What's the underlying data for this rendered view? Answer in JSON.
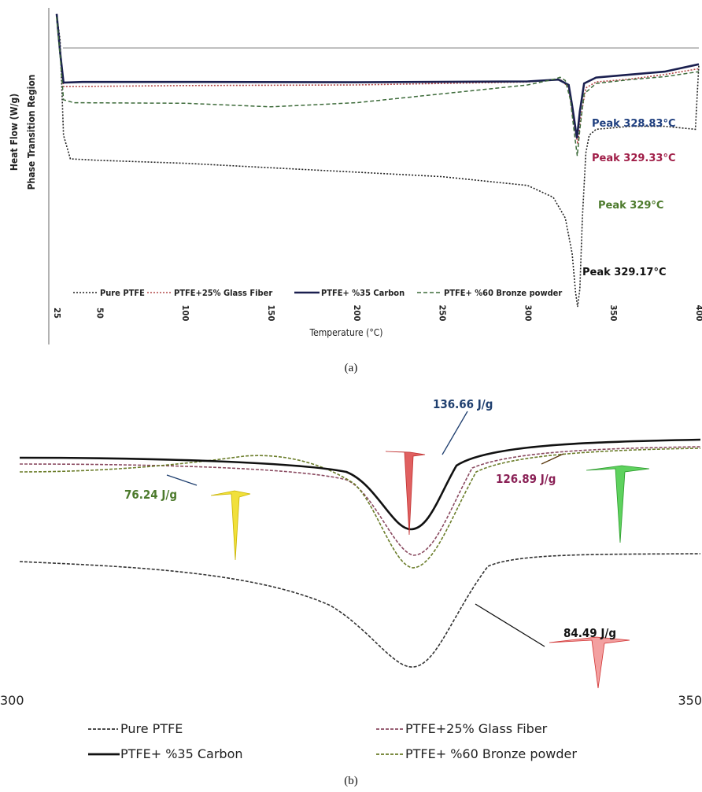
{
  "chart_data": [
    {
      "type": "line",
      "panel_label": "(a)",
      "xlabel": "Temperature (°C)",
      "ylabel": [
        "Heat Flow (W/g)",
        "Phase Transition  Region"
      ],
      "xlim": [
        25,
        400
      ],
      "x_ticks": [
        "25",
        "50",
        "100",
        "150",
        "200",
        "250",
        "300",
        "350",
        "400"
      ],
      "x_tick_values": [
        25,
        50,
        100,
        150,
        200,
        250,
        300,
        350,
        400
      ],
      "legend_position": "bottom",
      "series": [
        {
          "name": "Pure PTFE",
          "style": "dotted",
          "color": "#222222",
          "points": [
            [
              25,
              0.99
            ],
            [
              27,
              0.9
            ],
            [
              29,
              0.58
            ],
            [
              33,
              0.5
            ],
            [
              50,
              0.495
            ],
            [
              100,
              0.485
            ],
            [
              150,
              0.47
            ],
            [
              200,
              0.455
            ],
            [
              250,
              0.44
            ],
            [
              300,
              0.41
            ],
            [
              315,
              0.37
            ],
            [
              322,
              0.3
            ],
            [
              326,
              0.18
            ],
            [
              328,
              0.05
            ],
            [
              329.17,
              0.0
            ],
            [
              330.5,
              0.06
            ],
            [
              332,
              0.3
            ],
            [
              334,
              0.52
            ],
            [
              336,
              0.58
            ],
            [
              340,
              0.6
            ],
            [
              360,
              0.61
            ],
            [
              380,
              0.61
            ],
            [
              398,
              0.6
            ],
            [
              400,
              0.82
            ]
          ],
          "peak_label": "Peak 329.17°C",
          "peak_color": "#111111"
        },
        {
          "name": "PTFE+25% Glass Fiber",
          "style": "dotted",
          "color": "#b44a4a",
          "points": [
            [
              25,
              0.98
            ],
            [
              27,
              0.86
            ],
            [
              29,
              0.745
            ],
            [
              40,
              0.745
            ],
            [
              100,
              0.748
            ],
            [
              200,
              0.75
            ],
            [
              300,
              0.76
            ],
            [
              315,
              0.768
            ],
            [
              320,
              0.766
            ],
            [
              324,
              0.74
            ],
            [
              327,
              0.62
            ],
            [
              329.33,
              0.55
            ],
            [
              331,
              0.64
            ],
            [
              334,
              0.74
            ],
            [
              340,
              0.76
            ],
            [
              360,
              0.77
            ],
            [
              380,
              0.785
            ],
            [
              400,
              0.805
            ]
          ],
          "peak_label": "Peak 329.33°C",
          "peak_color": "#a01e48"
        },
        {
          "name": "PTFE+ %35 Carbon",
          "style": "solid",
          "color": "#1a1f4f",
          "points": [
            [
              25,
              0.99
            ],
            [
              27,
              0.86
            ],
            [
              29,
              0.758
            ],
            [
              40,
              0.76
            ],
            [
              100,
              0.76
            ],
            [
              200,
              0.759
            ],
            [
              300,
              0.762
            ],
            [
              318,
              0.768
            ],
            [
              324,
              0.75
            ],
            [
              326,
              0.68
            ],
            [
              328.83,
              0.57
            ],
            [
              330.5,
              0.66
            ],
            [
              333,
              0.755
            ],
            [
              340,
              0.775
            ],
            [
              360,
              0.785
            ],
            [
              380,
              0.795
            ],
            [
              400,
              0.82
            ]
          ],
          "peak_label": "Peak 328.83°C",
          "peak_color": "#1f3f7f"
        },
        {
          "name": "PTFE+ %60 Bronze powder",
          "style": "dashed",
          "color": "#3d6b3a",
          "points": [
            [
              25,
              0.98
            ],
            [
              27,
              0.85
            ],
            [
              29,
              0.7
            ],
            [
              35,
              0.69
            ],
            [
              100,
              0.688
            ],
            [
              150,
              0.676
            ],
            [
              200,
              0.69
            ],
            [
              250,
              0.72
            ],
            [
              300,
              0.75
            ],
            [
              316,
              0.77
            ],
            [
              319,
              0.776
            ],
            [
              322,
              0.765
            ],
            [
              325,
              0.7
            ],
            [
              327,
              0.6
            ],
            [
              329,
              0.51
            ],
            [
              330.5,
              0.6
            ],
            [
              333,
              0.72
            ],
            [
              340,
              0.755
            ],
            [
              360,
              0.768
            ],
            [
              380,
              0.778
            ],
            [
              400,
              0.795
            ]
          ],
          "peak_label": "Peak 329°C",
          "peak_color": "#4c7a2c"
        }
      ]
    },
    {
      "type": "line",
      "panel_label": "(b)",
      "xlim": [
        300,
        350
      ],
      "x_ticks": [
        "300",
        "350"
      ],
      "legend_position": "bottom",
      "series": [
        {
          "name": "Pure PTFE",
          "style": "dashed",
          "color": "#333333",
          "enthalpy": "84.49 J/g",
          "label_color": "#111111"
        },
        {
          "name": "PTFE+25% Glass Fiber",
          "style": "dashed",
          "color": "#8a4a60",
          "enthalpy": "126.89 J/g",
          "label_color": "#8a2156"
        },
        {
          "name": "PTFE+ %35 Carbon",
          "style": "solid",
          "color": "#111111",
          "enthalpy": "136.66 J/g",
          "label_color": "#1f3f6f"
        },
        {
          "name": "PTFE+ %60 Bronze powder",
          "style": "dashed",
          "color": "#6b7d2a",
          "enthalpy": "76.24 J/g",
          "label_color": "#4c7a2c"
        }
      ]
    }
  ]
}
